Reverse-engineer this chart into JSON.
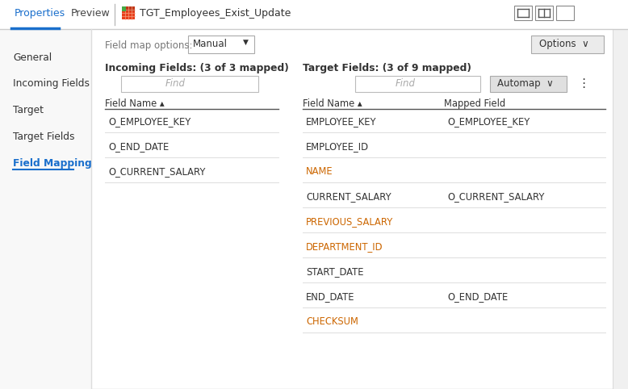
{
  "bg_color": "#ffffff",
  "sidebar_bg": "#f8f8f8",
  "tab_properties_text": "Properties",
  "tab_preview_text": "Preview",
  "tab_title_text": "TGT_Employees_Exist_Update",
  "tab_active_color": "#1a6fcc",
  "tab_inactive_color": "#444444",
  "left_nav_items": [
    "General",
    "Incoming Fields",
    "Target",
    "Target Fields",
    "Field Mapping"
  ],
  "left_nav_active": "Field Mapping",
  "left_nav_active_color": "#1a6fcc",
  "left_nav_inactive_color": "#333333",
  "field_map_label": "Field map options:",
  "field_map_dropdown": "Manual",
  "options_btn": "Options  ∨",
  "incoming_header": "Incoming Fields: (3 of 3 mapped)",
  "incoming_find_placeholder": "Find",
  "incoming_col_header": "Field Name ▴",
  "incoming_fields": [
    "O_EMPLOYEE_KEY",
    "O_END_DATE",
    "O_CURRENT_SALARY"
  ],
  "target_header": "Target Fields: (3 of 9 mapped)",
  "target_find_placeholder": "Find",
  "automap_btn": "Automap  ∨",
  "target_col1_header": "Field Name ▴",
  "target_col2_header": "Mapped Field",
  "target_fields": [
    [
      "EMPLOYEE_KEY",
      "O_EMPLOYEE_KEY"
    ],
    [
      "EMPLOYEE_ID",
      ""
    ],
    [
      "NAME",
      ""
    ],
    [
      "CURRENT_SALARY",
      "O_CURRENT_SALARY"
    ],
    [
      "PREVIOUS_SALARY",
      ""
    ],
    [
      "DEPARTMENT_ID",
      ""
    ],
    [
      "START_DATE",
      ""
    ],
    [
      "END_DATE",
      "O_END_DATE"
    ],
    [
      "CHECKSUM",
      ""
    ]
  ],
  "name_color": "#cc6600",
  "previous_salary_color": "#cc6600",
  "department_id_color": "#cc6600",
  "checksum_color": "#cc6600",
  "active_underline_color": "#1a6fcc",
  "separator_color": "#cccccc",
  "row_sep_color": "#dddddd",
  "header_line_color": "#555555"
}
